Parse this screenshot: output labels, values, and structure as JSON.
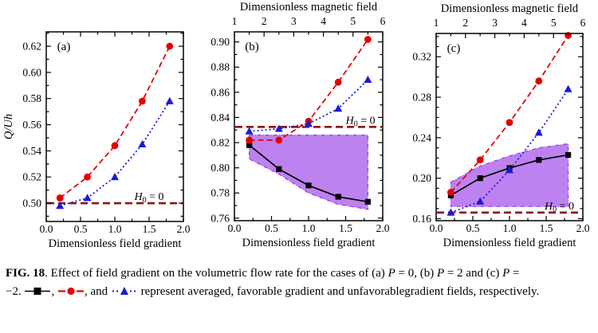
{
  "colors": {
    "red": "#e60000",
    "blue": "#1a1ad9",
    "black": "#000000",
    "dark_red": "#8b1414",
    "purple_fill": "#bd82f0",
    "purple_edge": "#9b45e0"
  },
  "figure": {
    "caption": {
      "fig_label": "FIG. 18",
      "t1": ". Effect of field gradient on the volumetric flow rate for the cases of (a) ",
      "p1": "P",
      "t2": " = 0, (b) ",
      "p2": "P",
      "t3": " = 2 and (c) ",
      "p3": "P",
      "t4": " =",
      "t5": "−2. ",
      "sep1": ", ",
      "sep2": ", and ",
      "t6": " represent averaged, favorable gradient and unfavorablegradient fields, respectively."
    },
    "legend": {
      "averaged": "averaged",
      "favorable": "favorable gradient",
      "unfavorable": "unfavorable gradient"
    }
  },
  "chart_data": [
    {
      "type": "line",
      "panel": "(a)",
      "xlabel": "Dimensionless field gradient",
      "ylabel": "Q/Uh",
      "xlim": [
        0,
        2
      ],
      "ylim": [
        0.486,
        0.631
      ],
      "xticks": {
        "values": [
          0,
          0.5,
          1,
          1.5,
          2
        ],
        "labels": [
          "0.0",
          "0.5",
          "1.0",
          "1.5",
          "2.0"
        ]
      },
      "yticks": {
        "values": [
          0.5,
          0.52,
          0.54,
          0.56,
          0.58,
          0.6,
          0.62
        ],
        "labels": [
          "0.50",
          "0.52",
          "0.54",
          "0.56",
          "0.58",
          "0.60",
          "0.62"
        ]
      },
      "x_minor_per_gap": 1,
      "y_minor_per_gap": 1,
      "x": [
        0.2,
        0.6,
        1.0,
        1.4,
        1.8
      ],
      "series": [
        {
          "name": "favorable gradient",
          "color": "red",
          "marker": "circle",
          "line": "dashed",
          "values": [
            0.504,
            0.52,
            0.544,
            0.578,
            0.62
          ]
        },
        {
          "name": "unfavorable gradient",
          "color": "blue",
          "marker": "triangle",
          "line": "dotted",
          "values": [
            0.498,
            0.504,
            0.52,
            0.545,
            0.578
          ]
        }
      ],
      "refline": {
        "y": 0.5,
        "label_x": 1.5,
        "label": {
          "h": "H",
          "sub": "0",
          "rest": " = 0"
        }
      }
    },
    {
      "type": "line",
      "panel": "(b)",
      "xlabel": "Dimensionless field gradient",
      "top_axis": {
        "label": "Dimensionless magnetic field",
        "lim": [
          1,
          6
        ],
        "minor_per_gap": 1,
        "ticks": {
          "values": [
            1,
            2,
            3,
            4,
            5,
            6
          ],
          "labels": [
            "1",
            "2",
            "3",
            "4",
            "5",
            "6"
          ]
        }
      },
      "xlim": [
        0,
        2
      ],
      "ylim": [
        0.758,
        0.908
      ],
      "xticks": {
        "values": [
          0,
          0.5,
          1,
          1.5,
          2
        ],
        "labels": [
          "0.0",
          "0.5",
          "1.0",
          "1.5",
          "2.0"
        ]
      },
      "yticks": {
        "values": [
          0.76,
          0.78,
          0.8,
          0.82,
          0.84,
          0.86,
          0.88,
          0.9
        ],
        "labels": [
          "0.76",
          "0.78",
          "0.80",
          "0.82",
          "0.84",
          "0.86",
          "0.88",
          "0.90"
        ]
      },
      "x_minor_per_gap": 1,
      "y_minor_per_gap": 1,
      "x": [
        0.2,
        0.6,
        1.0,
        1.4,
        1.8
      ],
      "band": {
        "x": [
          0.2,
          0.6,
          1.0,
          1.4,
          1.8
        ],
        "top": 0.826,
        "bottom": [
          0.807,
          0.795,
          0.78,
          0.771,
          0.767
        ]
      },
      "series": [
        {
          "name": "averaged",
          "color": "black",
          "marker": "square",
          "line": "solid",
          "values": [
            0.818,
            0.799,
            0.786,
            0.777,
            0.773
          ]
        },
        {
          "name": "favorable gradient",
          "color": "red",
          "marker": "circle",
          "line": "dashed",
          "values": [
            0.822,
            0.822,
            0.837,
            0.868,
            0.902
          ]
        },
        {
          "name": "unfavorable gradient",
          "color": "blue",
          "marker": "triangle",
          "line": "dotted",
          "values": [
            0.829,
            0.831,
            0.835,
            0.847,
            0.87
          ]
        }
      ],
      "refline": {
        "y": 0.8325,
        "label_x": 1.7,
        "label": {
          "h": "H",
          "sub": "0",
          "rest": " = 0"
        }
      }
    },
    {
      "type": "line",
      "panel": "(c)",
      "xlabel": "Dimensionless field gradient",
      "top_axis": {
        "label": "Dimensionless magnetic field",
        "lim": [
          1,
          6
        ],
        "minor_per_gap": 1,
        "ticks": {
          "values": [
            1,
            2,
            3,
            4,
            5,
            6
          ],
          "labels": [
            "1",
            "2",
            "3",
            "4",
            "5",
            "6"
          ]
        }
      },
      "xlim": [
        0,
        2
      ],
      "ylim": [
        0.158,
        0.343
      ],
      "xticks": {
        "values": [
          0,
          0.5,
          1,
          1.5,
          2
        ],
        "labels": [
          "0.0",
          "0.5",
          "1.0",
          "1.5",
          "2.0"
        ]
      },
      "yticks": {
        "values": [
          0.16,
          0.2,
          0.24,
          0.28,
          0.32
        ],
        "labels": [
          "0.16",
          "0.20",
          "0.24",
          "0.28",
          "0.32"
        ]
      },
      "x_minor_per_gap": 1,
      "y_minor_per_gap": 3,
      "x": [
        0.2,
        0.6,
        1.0,
        1.4,
        1.8
      ],
      "band": {
        "x": [
          0.2,
          0.6,
          1.0,
          1.4,
          1.8
        ],
        "top": [
          0.196,
          0.212,
          0.222,
          0.23,
          0.234
        ],
        "bottom": 0.172
      },
      "series": [
        {
          "name": "averaged",
          "color": "black",
          "marker": "square",
          "line": "solid",
          "values": [
            0.183,
            0.2,
            0.21,
            0.218,
            0.223
          ]
        },
        {
          "name": "favorable gradient",
          "color": "red",
          "marker": "circle",
          "line": "dashed",
          "values": [
            0.186,
            0.218,
            0.255,
            0.296,
            0.341
          ]
        },
        {
          "name": "unfavorable gradient",
          "color": "blue",
          "marker": "triangle",
          "line": "dotted",
          "values": [
            0.166,
            0.177,
            0.208,
            0.245,
            0.288
          ]
        }
      ],
      "refline": {
        "y": 0.166,
        "label_x": 1.68,
        "label": {
          "h": "H",
          "sub": "0",
          "rest": " = 0"
        }
      }
    }
  ]
}
